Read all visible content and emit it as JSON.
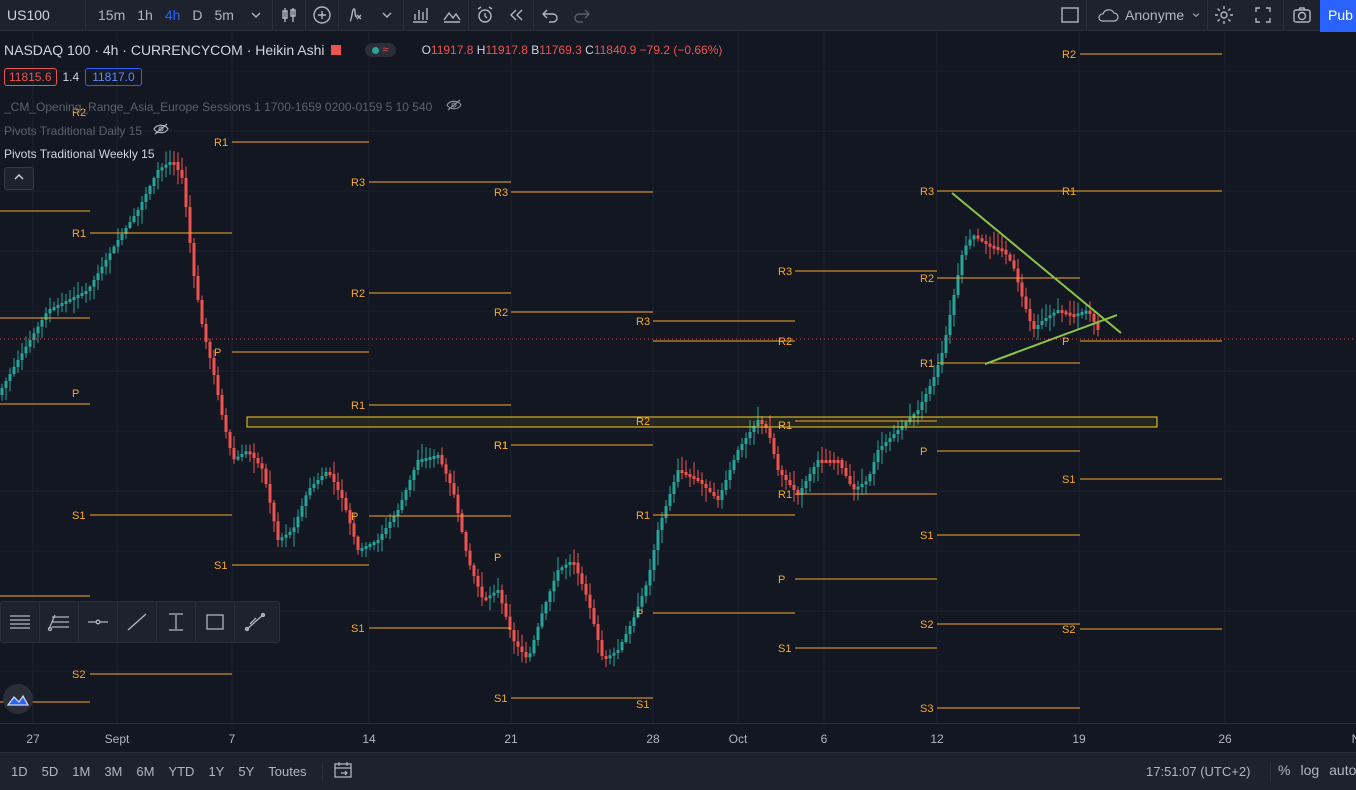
{
  "topbar": {
    "symbol": "US100",
    "intervals": [
      "15m",
      "1h",
      "4h",
      "D",
      "5m"
    ],
    "active_interval": "4h",
    "account": "Anonyme",
    "publish": "Pub"
  },
  "legend": {
    "title": "NASDAQ 100 · 4h · CURRENCYCOM · Heikin Ashi",
    "ohlc": {
      "o_label": "O",
      "o": "11917.8",
      "h_label": "H",
      "h": "11917.8",
      "l_label": "B",
      "l": "11769.3",
      "c_label": "C",
      "c": "11840.9",
      "change": "−79.2 (−0.66%)"
    },
    "sell_price": "11815.6",
    "spread": "1.4",
    "buy_price": "11817.0"
  },
  "indicators": [
    "_CM_Opening_Range_Asia_Europe Sessions 1 1700-1659 0200-0159 5 10 540",
    "Pivots Traditional Daily 15",
    "Pivots Traditional Weekly 15"
  ],
  "colors": {
    "bull": "#26a69a",
    "bear": "#ef5350",
    "pivot": "#f7a928",
    "trend": "#8bc34a",
    "zone": "#f5d21f",
    "accent": "#2962ff"
  },
  "pivot_labels": [
    "R2",
    "R1",
    "R3",
    "R2",
    "R1",
    "P",
    "S1",
    "S2",
    "R3",
    "R2",
    "R1",
    "R1",
    "P",
    "S1",
    "R3",
    "R2",
    "R1",
    "P",
    "S1",
    "R3",
    "R2",
    "R1",
    "P",
    "S1",
    "S2",
    "R3",
    "R2",
    "R1",
    "P",
    "S1",
    "S2",
    "S3",
    "R2",
    "R1",
    "P",
    "S1",
    "S2"
  ],
  "time_axis": [
    "27",
    "Sept",
    "7",
    "14",
    "21",
    "28",
    "Oct",
    "6",
    "12",
    "19",
    "26",
    "N"
  ],
  "bottombar": {
    "ranges": [
      "1D",
      "5D",
      "1M",
      "3M",
      "6M",
      "YTD",
      "1Y",
      "5Y",
      "Toutes"
    ],
    "clock": "17:51:07 (UTC+2)",
    "percent": "%",
    "log": "log",
    "auto": "auto"
  },
  "chart_data": {
    "type": "candlestick",
    "style": "Heikin Ashi",
    "last_close": 11840.9,
    "current_level_line": "dotted red"
  }
}
